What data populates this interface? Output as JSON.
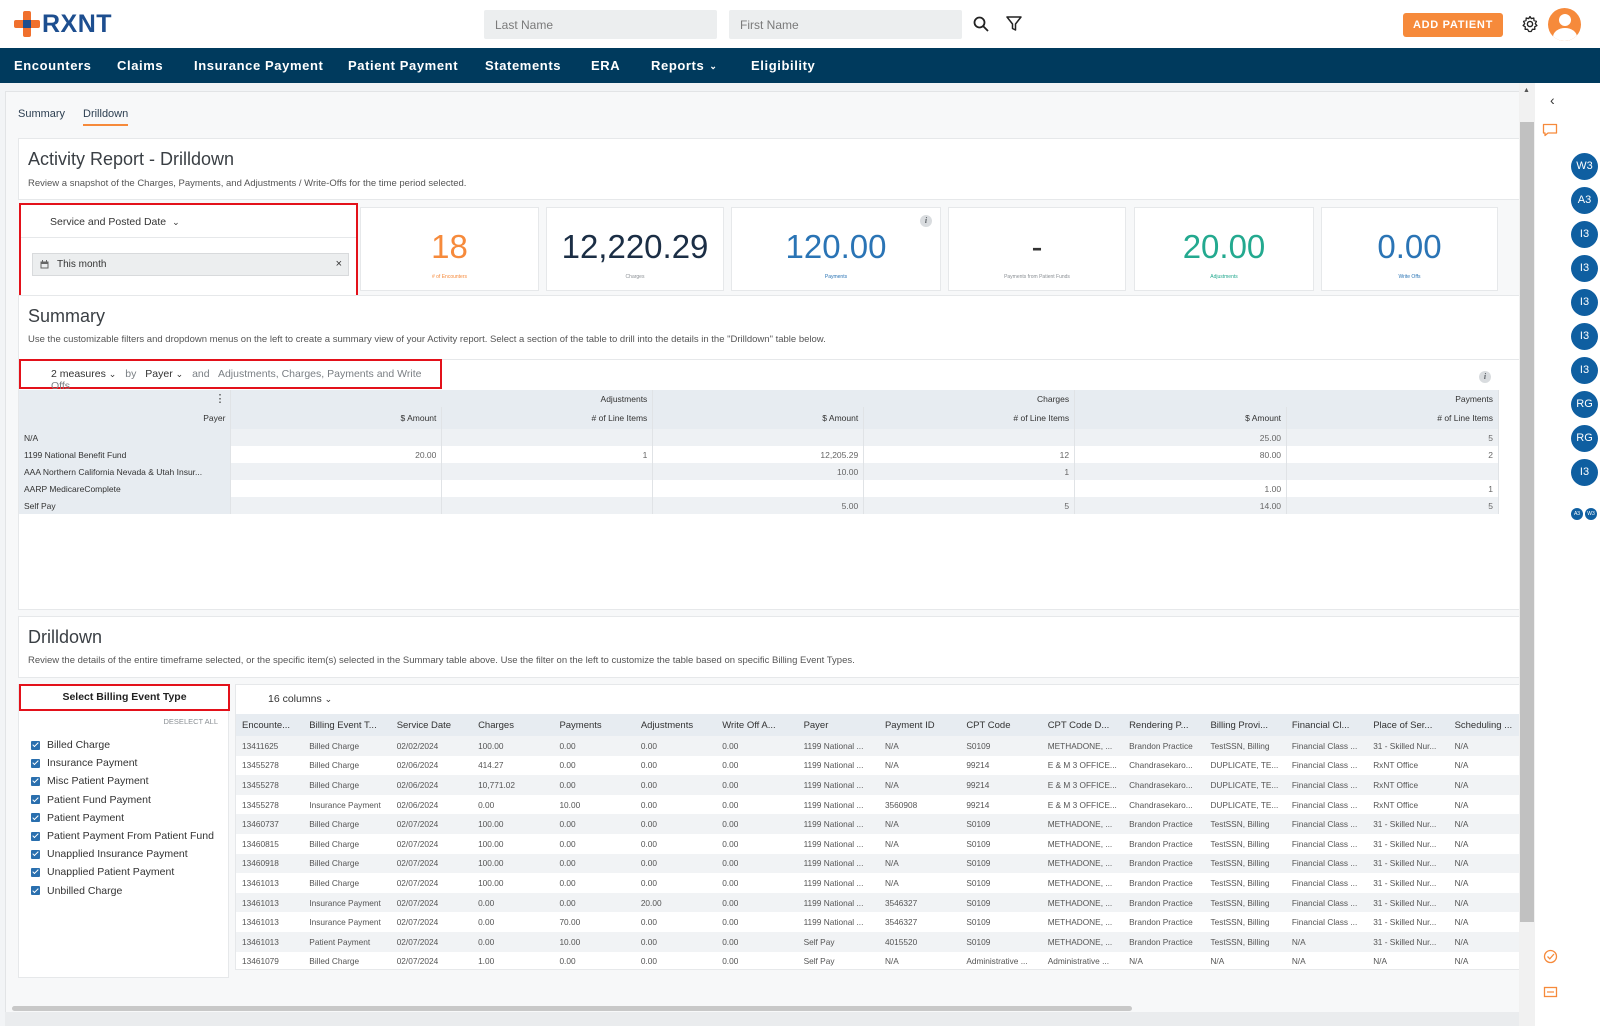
{
  "header": {
    "brand": "RXNT",
    "last_name_placeholder": "Last Name",
    "first_name_placeholder": "First Name",
    "add_patient_label": "ADD PATIENT"
  },
  "nav": {
    "items": [
      "Encounters",
      "Claims",
      "Insurance Payment",
      "Patient Payment",
      "Statements",
      "ERA",
      "Reports",
      "Eligibility"
    ]
  },
  "subtabs": {
    "summary": "Summary",
    "drilldown": "Drilldown"
  },
  "activity": {
    "title": "Activity Report - Drilldown",
    "description": "Review a snapshot of the Charges, Payments, and Adjustments / Write-Offs for the time period selected.",
    "date_type_label": "Service and Posted Date",
    "date_range_value": "This month",
    "clear_symbol": "×"
  },
  "kpis": [
    {
      "value": "18",
      "label": "# of Encounters",
      "color": "#f68a3b"
    },
    {
      "value": "12,220.29",
      "label": "Charges",
      "color": "#1b2e45"
    },
    {
      "value": "120.00",
      "label": "Payments",
      "color": "#2a74b5"
    },
    {
      "value": "-",
      "label": "Payments from Patient Funds",
      "color": "#333333"
    },
    {
      "value": "20.00",
      "label": "Adjustments",
      "color": "#23a98f"
    },
    {
      "value": "0.00",
      "label": "Write Offs",
      "color": "#2a74b5"
    }
  ],
  "summary": {
    "title": "Summary",
    "description": "Use the customizable filters and dropdown menus on the left to create a summary view of your Activity report. Select a section of the table to drill into the details in the \"Drilldown\" table below.",
    "measures_label": "2 measures",
    "by_word": "by",
    "group_label": "Payer",
    "and_word": "and",
    "measures_list": "Adjustments, Charges, Payments and Write Offs",
    "groups": [
      "Adjustments",
      "Charges",
      "Payments"
    ],
    "row_header": "Payer",
    "sub_headers": [
      "$ Amount",
      "# of Line Items",
      "$ Amount",
      "# of Line Items",
      "$ Amount",
      "# of Line Items"
    ],
    "rows": [
      {
        "payer": "N/A",
        "cells": [
          "",
          "",
          "",
          "",
          "25.00",
          "5"
        ]
      },
      {
        "payer": "1199 National Benefit Fund",
        "cells": [
          "20.00",
          "1",
          "12,205.29",
          "12",
          "80.00",
          "2"
        ]
      },
      {
        "payer": "AAA Northern California Nevada & Utah Insur...",
        "cells": [
          "",
          "",
          "10.00",
          "1",
          "",
          ""
        ]
      },
      {
        "payer": "AARP MedicareComplete",
        "cells": [
          "",
          "",
          "",
          "",
          "1.00",
          "1"
        ]
      },
      {
        "payer": "Self Pay",
        "cells": [
          "",
          "",
          "5.00",
          "5",
          "14.00",
          "5"
        ]
      }
    ]
  },
  "drilldown": {
    "title": "Drilldown",
    "description": "Review the details of the entire timeframe selected, or the specific item(s) selected in the Summary table above. Use the filter on the left to customize the table based on specific Billing Event Types.",
    "filter_title": "Select Billing Event Type",
    "deselect_all": "DESELECT ALL",
    "filter_items": [
      "Billed Charge",
      "Insurance Payment",
      "Misc Patient Payment",
      "Patient Fund Payment",
      "Patient Payment",
      "Patient Payment From Patient Fund",
      "Unapplied Insurance Payment",
      "Unapplied Patient Payment",
      "Unbilled Charge"
    ],
    "columns_label": "16 columns",
    "columns": [
      "Encounte...",
      "Billing Event T...",
      "Service Date",
      "Charges",
      "Payments",
      "Adjustments",
      "Write Off A...",
      "Payer",
      "Payment ID",
      "CPT Code",
      "CPT Code D...",
      "Rendering P...",
      "Billing Provi...",
      "Financial Cl...",
      "Place of Ser...",
      "Scheduling ..."
    ],
    "rows": [
      [
        "13411625",
        "Billed Charge",
        "02/02/2024",
        "100.00",
        "0.00",
        "0.00",
        "0.00",
        "1199 National ...",
        "N/A",
        "S0109",
        "METHADONE, ...",
        "Brandon Practice",
        "TestSSN, Billing",
        "Financial Class ...",
        "31 - Skilled Nur...",
        "N/A"
      ],
      [
        "13455278",
        "Billed Charge",
        "02/06/2024",
        "414.27",
        "0.00",
        "0.00",
        "0.00",
        "1199 National ...",
        "N/A",
        "99214",
        "E & M 3 OFFICE...",
        "Chandrasekaro...",
        "DUPLICATE, TE...",
        "Financial Class ...",
        "RxNT Office",
        "N/A"
      ],
      [
        "13455278",
        "Billed Charge",
        "02/06/2024",
        "10,771.02",
        "0.00",
        "0.00",
        "0.00",
        "1199 National ...",
        "N/A",
        "99214",
        "E & M 3 OFFICE...",
        "Chandrasekaro...",
        "DUPLICATE, TE...",
        "Financial Class ...",
        "RxNT Office",
        "N/A"
      ],
      [
        "13455278",
        "Insurance Payment",
        "02/06/2024",
        "0.00",
        "10.00",
        "0.00",
        "0.00",
        "1199 National ...",
        "3560908",
        "99214",
        "E & M 3 OFFICE...",
        "Chandrasekaro...",
        "DUPLICATE, TE...",
        "Financial Class ...",
        "RxNT Office",
        "N/A"
      ],
      [
        "13460737",
        "Billed Charge",
        "02/07/2024",
        "100.00",
        "0.00",
        "0.00",
        "0.00",
        "1199 National ...",
        "N/A",
        "S0109",
        "METHADONE, ...",
        "Brandon Practice",
        "TestSSN, Billing",
        "Financial Class ...",
        "31 - Skilled Nur...",
        "N/A"
      ],
      [
        "13460815",
        "Billed Charge",
        "02/07/2024",
        "100.00",
        "0.00",
        "0.00",
        "0.00",
        "1199 National ...",
        "N/A",
        "S0109",
        "METHADONE, ...",
        "Brandon Practice",
        "TestSSN, Billing",
        "Financial Class ...",
        "31 - Skilled Nur...",
        "N/A"
      ],
      [
        "13460918",
        "Billed Charge",
        "02/07/2024",
        "100.00",
        "0.00",
        "0.00",
        "0.00",
        "1199 National ...",
        "N/A",
        "S0109",
        "METHADONE, ...",
        "Brandon Practice",
        "TestSSN, Billing",
        "Financial Class ...",
        "31 - Skilled Nur...",
        "N/A"
      ],
      [
        "13461013",
        "Billed Charge",
        "02/07/2024",
        "100.00",
        "0.00",
        "0.00",
        "0.00",
        "1199 National ...",
        "N/A",
        "S0109",
        "METHADONE, ...",
        "Brandon Practice",
        "TestSSN, Billing",
        "Financial Class ...",
        "31 - Skilled Nur...",
        "N/A"
      ],
      [
        "13461013",
        "Insurance Payment",
        "02/07/2024",
        "0.00",
        "0.00",
        "20.00",
        "0.00",
        "1199 National ...",
        "3546327",
        "S0109",
        "METHADONE, ...",
        "Brandon Practice",
        "TestSSN, Billing",
        "Financial Class ...",
        "31 - Skilled Nur...",
        "N/A"
      ],
      [
        "13461013",
        "Insurance Payment",
        "02/07/2024",
        "0.00",
        "70.00",
        "0.00",
        "0.00",
        "1199 National ...",
        "3546327",
        "S0109",
        "METHADONE, ...",
        "Brandon Practice",
        "TestSSN, Billing",
        "Financial Class ...",
        "31 - Skilled Nur...",
        "N/A"
      ],
      [
        "13461013",
        "Patient Payment",
        "02/07/2024",
        "0.00",
        "10.00",
        "0.00",
        "0.00",
        "Self Pay",
        "4015520",
        "S0109",
        "METHADONE, ...",
        "Brandon Practice",
        "TestSSN, Billing",
        "N/A",
        "31 - Skilled Nur...",
        "N/A"
      ],
      [
        "13461079",
        "Billed Charge",
        "02/07/2024",
        "1.00",
        "0.00",
        "0.00",
        "0.00",
        "Self Pay",
        "N/A",
        "Administrative ...",
        "Administrative ...",
        "N/A",
        "N/A",
        "N/A",
        "N/A",
        "N/A"
      ]
    ]
  },
  "right_rail": {
    "badges": [
      "W3",
      "A3",
      "I3",
      "I3",
      "I3",
      "I3",
      "I3",
      "RG",
      "RG",
      "I3"
    ],
    "small_badges": [
      "A3",
      "W3"
    ]
  },
  "colors": {
    "nav_bg": "#003a5d",
    "accent": "#f68a3b",
    "highlight_box": "#e3111a",
    "badge": "#0f5fa1"
  }
}
